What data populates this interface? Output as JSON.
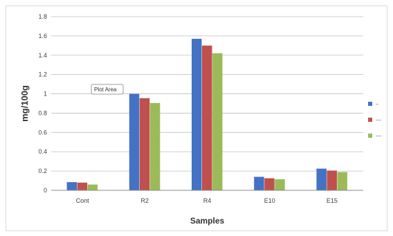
{
  "chart_data": {
    "type": "bar",
    "categories": [
      "Cont",
      "R2",
      "R4",
      "E10",
      "E15"
    ],
    "series": [
      {
        "name": "",
        "color": "#4472c4",
        "values": [
          0.085,
          1.0,
          1.57,
          0.14,
          0.225
        ]
      },
      {
        "name": "",
        "color": "#c0504d",
        "values": [
          0.08,
          0.955,
          1.5,
          0.125,
          0.205
        ]
      },
      {
        "name": "",
        "color": "#9bbb59",
        "values": [
          0.06,
          0.905,
          1.42,
          0.115,
          0.19
        ]
      }
    ],
    "xlabel": "Samples",
    "ylabel": "mg/100g",
    "ylim": [
      0,
      1.8
    ],
    "yticks": [
      "0",
      "0.2",
      "0.4",
      "0.6",
      "0.8",
      "1",
      "1.2",
      "1.4",
      "1.6",
      "1.8"
    ],
    "grid": true,
    "legend_position": "right",
    "legend_labels": [
      "~",
      "~~",
      "~~"
    ],
    "tooltip": "Plot Area"
  }
}
